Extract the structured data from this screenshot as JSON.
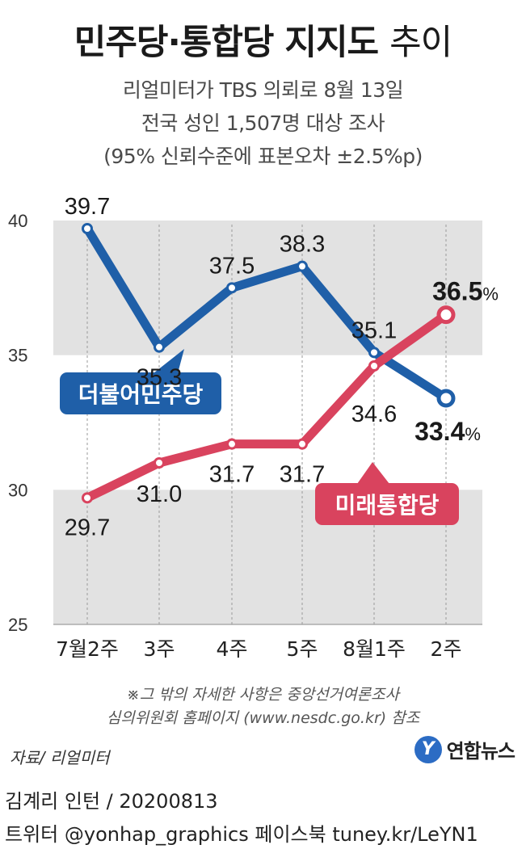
{
  "title": {
    "bold": "민주당·통합당 지지도",
    "thin": "추이"
  },
  "subtitle": [
    "리얼미터가 TBS 의뢰로 8월 13일",
    "전국 성인 1,507명 대상 조사",
    "(95% 신뢰수준에 표본오차 ±2.5%p)"
  ],
  "chart_data": {
    "type": "line",
    "categories": [
      "7월2주",
      "3주",
      "4주",
      "5주",
      "8월1주",
      "2주"
    ],
    "ylim": [
      25,
      40
    ],
    "yticks": [
      "25",
      "30",
      "35",
      "40"
    ],
    "series": [
      {
        "name": "더불어민주당",
        "values": [
          39.7,
          35.3,
          37.5,
          38.3,
          35.1,
          33.4
        ],
        "labels": [
          "39.7",
          "35.3",
          "37.5",
          "38.3",
          "35.1",
          "33.4"
        ],
        "color": "#1f5fa8"
      },
      {
        "name": "미래통합당",
        "values": [
          29.7,
          31.0,
          31.7,
          31.7,
          34.6,
          36.5
        ],
        "labels": [
          "29.7",
          "31.0",
          "31.7",
          "31.7",
          "34.6",
          "36.5"
        ],
        "color": "#d9435e"
      }
    ],
    "percent_suffix": "%",
    "band_color": "#e2e2e2",
    "grid": "vertical-dashed"
  },
  "notes": [
    "※그 밖의 자세한 사항은 중앙선거여론조사",
    "심의위원회 홈페이지 (www.nesdc.go.kr) 참조"
  ],
  "source": "자료/ 리얼미터",
  "logo": {
    "mark": "Y",
    "text": "연합뉴스"
  },
  "footer": {
    "credit": "김계리 인턴 / 20200813",
    "social": "트위터 @yonhap_graphics  페이스북 tuney.kr/LeYN1"
  }
}
